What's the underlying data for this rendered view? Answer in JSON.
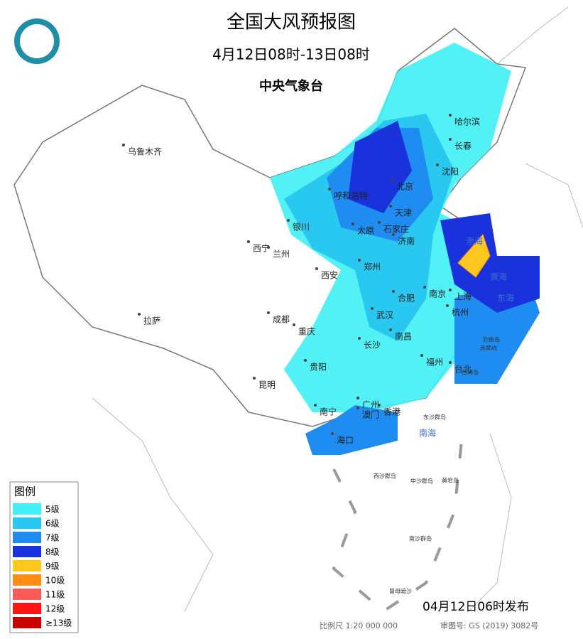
{
  "header": {
    "title": "全国大风预报图",
    "period": "4月12日08时-13日08时",
    "agency": "中央气象台"
  },
  "cities": [
    "乌鲁木齐",
    "哈尔滨",
    "长春",
    "沈阳",
    "北京",
    "天津",
    "呼和浩特",
    "石家庄",
    "太原",
    "济南",
    "银川",
    "西宁",
    "兰州",
    "郑州",
    "西安",
    "合肥",
    "南京",
    "上海",
    "杭州",
    "武汉",
    "成都",
    "重庆",
    "拉萨",
    "长沙",
    "南昌",
    "福州",
    "台北",
    "贵阳",
    "昆明",
    "南宁",
    "广州",
    "澳门",
    "香港",
    "海口"
  ],
  "seas": [
    "渤海",
    "黄海",
    "东海",
    "南海"
  ],
  "islands": [
    "钓鱼岛",
    "赤尾屿",
    "台湾岛",
    "东沙群岛",
    "西沙群岛",
    "中沙群岛",
    "黄岩岛",
    "南沙群岛",
    "曾母暗沙"
  ],
  "legend": {
    "title": "图例",
    "items": [
      {
        "label": "5级",
        "color": "#3ff0f5"
      },
      {
        "label": "6级",
        "color": "#28c8f0"
      },
      {
        "label": "7级",
        "color": "#1e8cf0"
      },
      {
        "label": "8级",
        "color": "#1a32dc"
      },
      {
        "label": "9级",
        "color": "#ffc81e"
      },
      {
        "label": "10级",
        "color": "#ff8c14"
      },
      {
        "label": "11级",
        "color": "#ff5a5a"
      },
      {
        "label": "12级",
        "color": "#ff1414"
      },
      {
        "label": "≥13级",
        "color": "#c80000"
      }
    ]
  },
  "footer": {
    "issued": "04月12日06时发布",
    "scale": "比例尺 1:20 000 000",
    "approval": "审图号: GS (2019) 3082号"
  }
}
